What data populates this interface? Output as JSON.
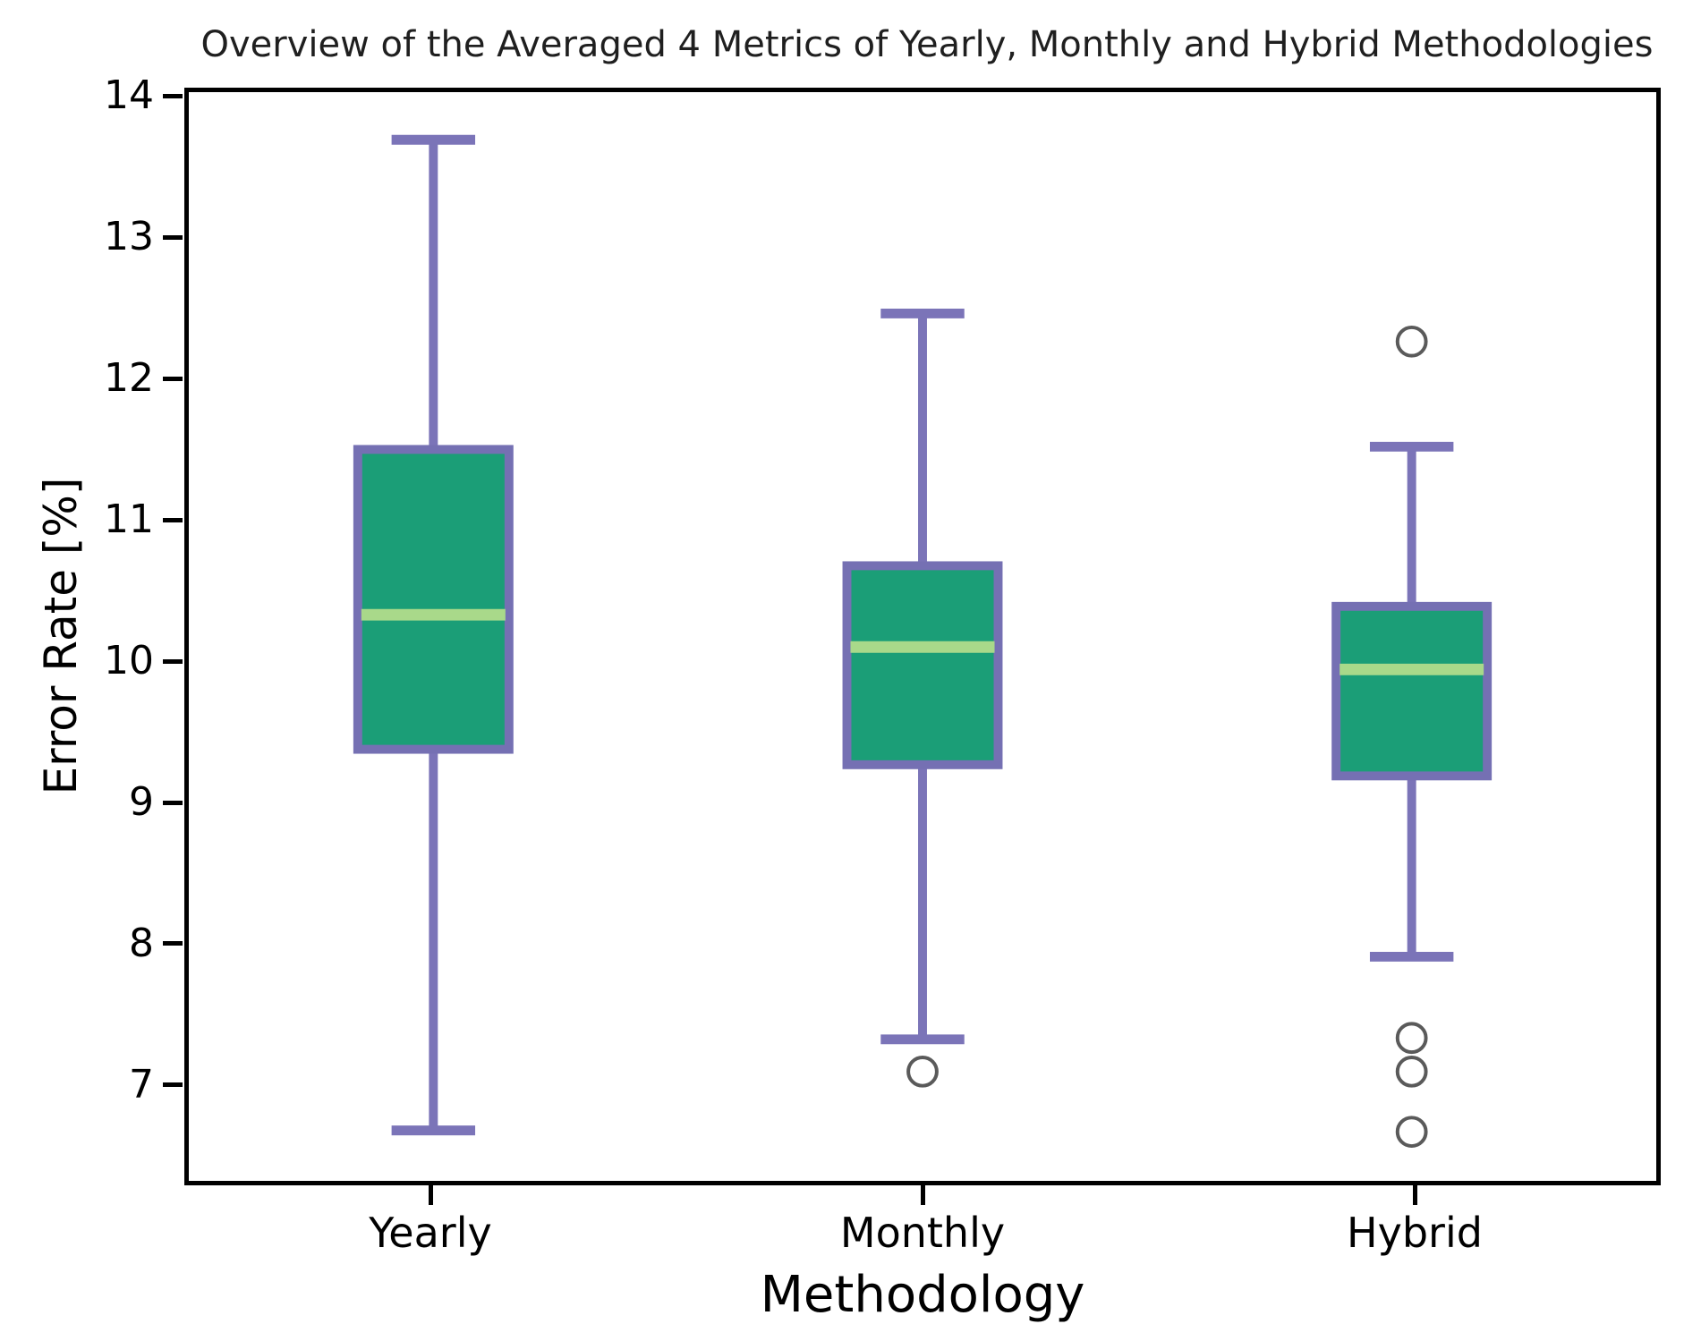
{
  "title": "Overview of the Averaged 4 Metrics of Yearly, Monthly and Hybrid Methodologies",
  "chart_data": {
    "type": "box",
    "title": "Overview of the Averaged 4 Metrics of Yearly, Monthly and Hybrid Methodologies",
    "xlabel": "Methodology",
    "ylabel": "Error Rate [%]",
    "categories": [
      "Yearly",
      "Monthly",
      "Hybrid"
    ],
    "yticks": [
      7,
      8,
      9,
      10,
      11,
      12,
      13,
      14
    ],
    "ylim": [
      6.29,
      14.06
    ],
    "grid": false,
    "legend": false,
    "boxes": [
      {
        "label": "Yearly",
        "whisker_low": 6.65,
        "q1": 9.37,
        "median": 10.33,
        "q3": 11.51,
        "whisker_high": 13.72,
        "outliers": []
      },
      {
        "label": "Monthly",
        "whisker_low": 7.3,
        "q1": 9.26,
        "median": 10.1,
        "q3": 10.68,
        "whisker_high": 12.48,
        "outliers": [
          7.07
        ]
      },
      {
        "label": "Hybrid",
        "whisker_low": 7.89,
        "q1": 9.18,
        "median": 9.94,
        "q3": 10.39,
        "whisker_high": 11.53,
        "outliers": [
          12.28,
          7.31,
          7.07,
          6.64
        ]
      }
    ],
    "colors": {
      "box_fill": "#1b9e77",
      "box_edge": "#7570b3",
      "whisker": "#7b74b8",
      "median": "#a9d98a",
      "outlier_edge": "#5a5a5a",
      "spine": "#000000"
    }
  }
}
